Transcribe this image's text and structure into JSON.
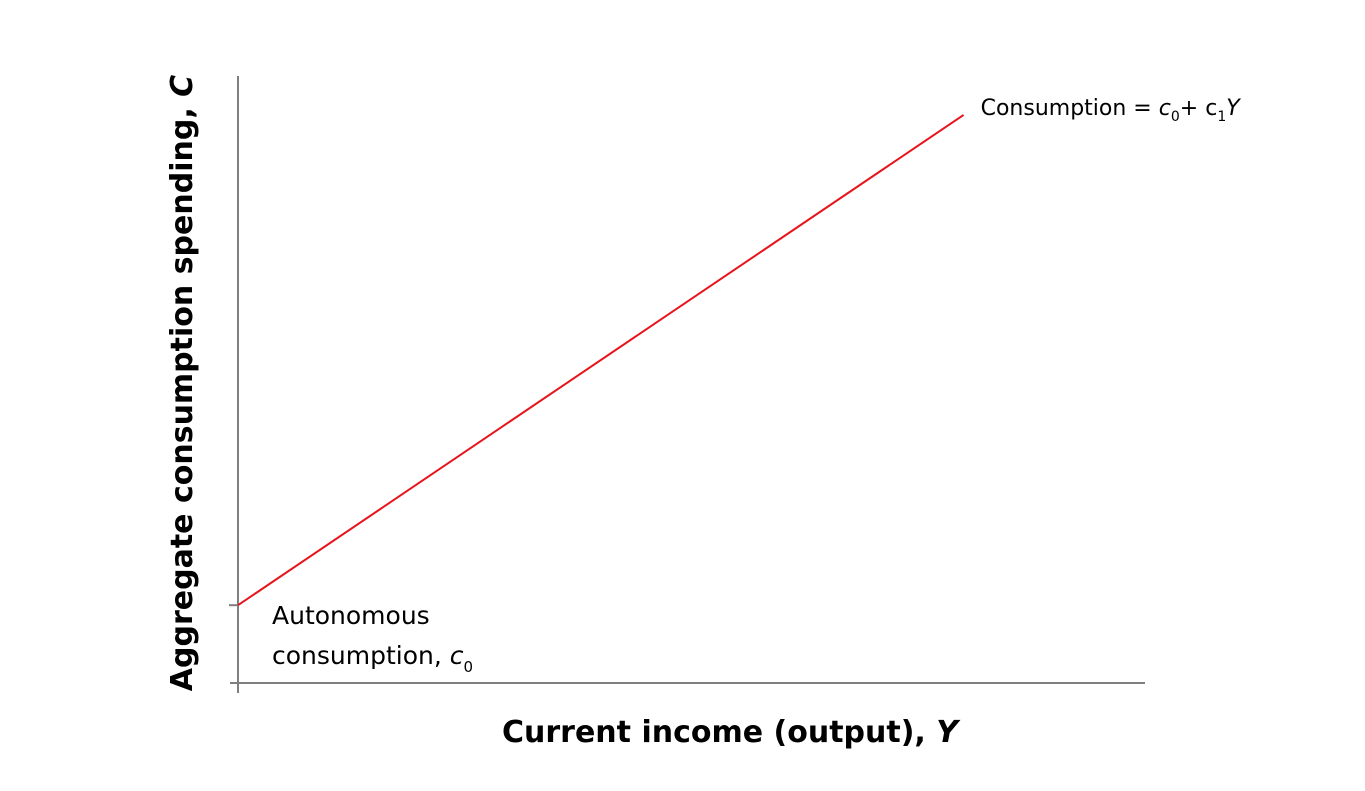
{
  "chart_data": {
    "type": "line",
    "title": "",
    "xlabel": "Current income (output), ",
    "xlabel_var": "Y",
    "ylabel": "Aggregate consumption spending, ",
    "ylabel_var": "C",
    "x": [
      0,
      100
    ],
    "series": [
      {
        "name": "Consumption",
        "values": [
          10,
          73
        ],
        "color": "#e8141c"
      }
    ],
    "xlim": [
      0,
      125
    ],
    "ylim": [
      0,
      78
    ],
    "grid": false,
    "line_label": {
      "prefix": "Consumption = ",
      "c0": "c",
      "c0_sub": "0",
      "plus": "+  ",
      "c1": "c",
      "c1_sub": "1",
      "var": "Y"
    },
    "intercept_label": {
      "line1": "Autonomous",
      "line2": "consumption, ",
      "var": "c",
      "sub": "0"
    }
  },
  "colors": {
    "axis": "#7f7f7f",
    "line": "#e8141c"
  }
}
